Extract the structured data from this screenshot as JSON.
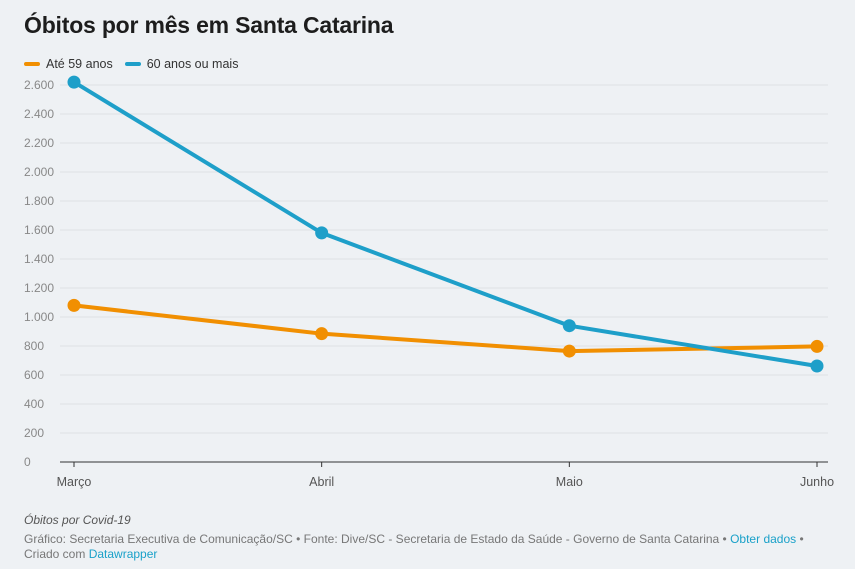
{
  "colors": {
    "series_orange": "#f18f01",
    "series_blue": "#1e9fc9",
    "grid": "#dde1e5",
    "axis_text": "#888888",
    "link": "#1aa1c9"
  },
  "chart_data": {
    "type": "line",
    "title": "Óbitos por mês em Santa Catarina",
    "categories": [
      "Março",
      "Abril",
      "Maio",
      "Junho"
    ],
    "series": [
      {
        "name": "Até 59 anos",
        "color": "#f18f01",
        "values": [
          1080,
          885,
          765,
          797
        ]
      },
      {
        "name": "60 anos ou mais",
        "color": "#1e9fc9",
        "values": [
          2620,
          1580,
          940,
          662
        ]
      }
    ],
    "ylim": [
      0,
      2600
    ],
    "yticks": [
      0,
      200,
      400,
      600,
      800,
      1000,
      1200,
      1400,
      1600,
      1800,
      2000,
      2200,
      2400,
      2600
    ],
    "ytick_labels": [
      "0",
      "200",
      "400",
      "600",
      "800",
      "1.000",
      "1.200",
      "1.400",
      "1.600",
      "1.800",
      "2.000",
      "2.200",
      "2.400",
      "2.600"
    ],
    "grid": true,
    "legend_position": "top-left"
  },
  "notes": "Óbitos por Covid-19",
  "footer": {
    "source_text": "Gráfico: Secretaria Executiva de Comunicação/SC • Fonte: Dive/SC - Secretaria de Estado da Saúde - Governo de Santa Catarina • ",
    "get_data_link": "Obter dados",
    "created_with": " • Criado com ",
    "datawrapper_link": "Datawrapper"
  }
}
